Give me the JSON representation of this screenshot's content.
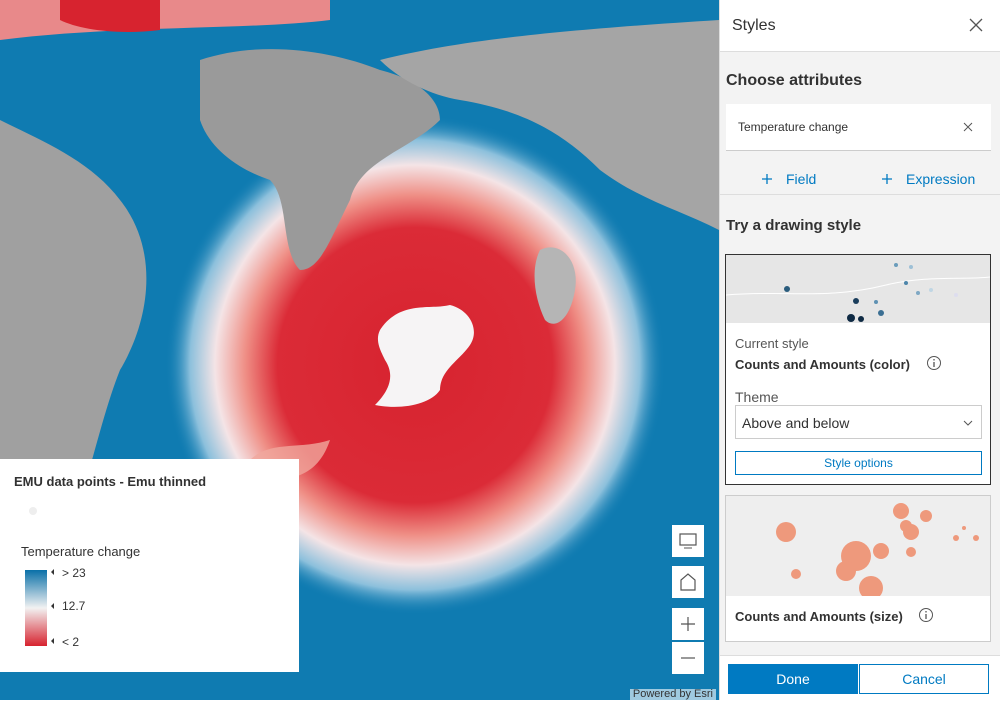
{
  "map": {
    "attribution": "Powered by Esri"
  },
  "legend": {
    "layer_title": "EMU data points - Emu thinned",
    "field": "Temperature change",
    "stops": [
      {
        "label": "> 23"
      },
      {
        "label": "12.7"
      },
      {
        "label": "< 2"
      }
    ]
  },
  "panel": {
    "title": "Styles",
    "section_title": "Choose attributes",
    "attribute": "Temperature change",
    "add_field": "Field",
    "add_expression": "Expression",
    "drawing_title": "Try a drawing style",
    "current_label": "Current style",
    "current_style": "Counts and Amounts (color)",
    "theme_label": "Theme",
    "theme_value": "Above and below",
    "style_options": "Style options",
    "alt_style": "Counts and Amounts (size)",
    "done": "Done",
    "cancel": "Cancel"
  }
}
